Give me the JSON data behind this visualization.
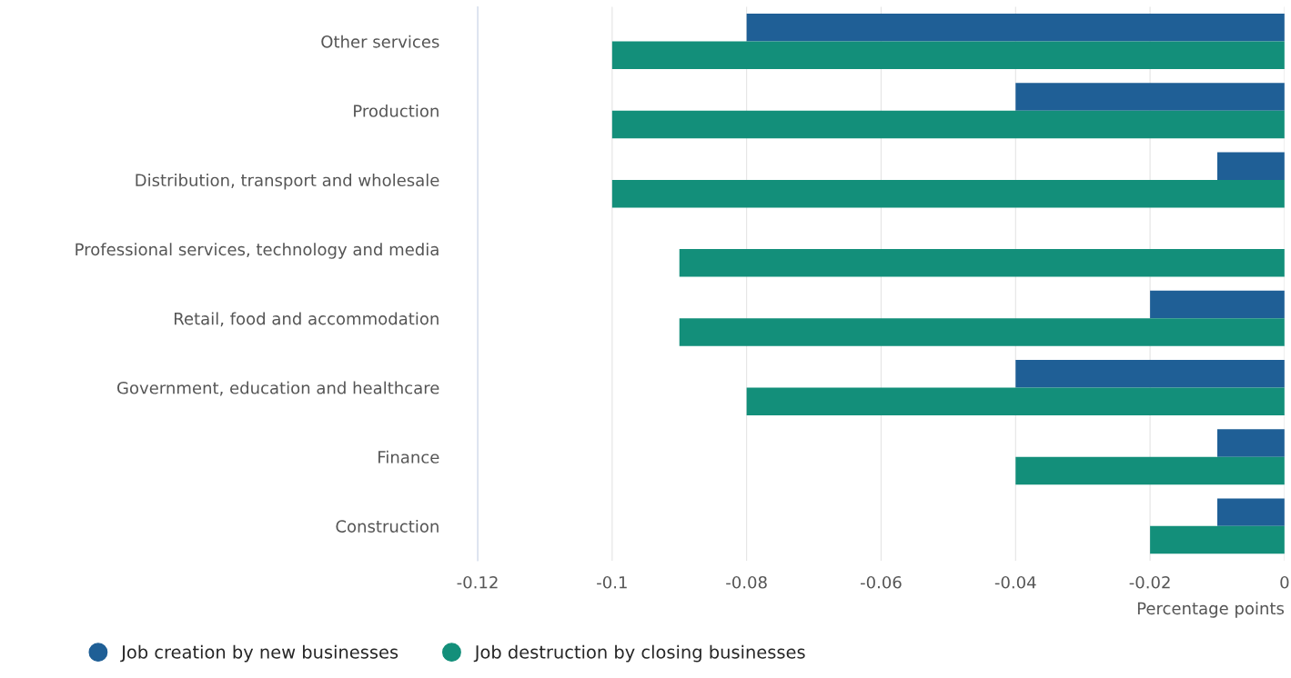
{
  "chart_data": {
    "type": "bar",
    "orientation": "horizontal",
    "categories": [
      "Other services",
      "Production",
      "Distribution, transport and wholesale",
      "Professional services, technology and media",
      "Retail, food and accommodation",
      "Government, education and healthcare",
      "Finance",
      "Construction"
    ],
    "series": [
      {
        "name": "Job creation by new businesses",
        "color": "#1f5f96",
        "values": [
          -0.08,
          -0.04,
          -0.01,
          null,
          -0.02,
          -0.04,
          -0.01,
          -0.01
        ]
      },
      {
        "name": "Job destruction by closing businesses",
        "color": "#138f7a",
        "values": [
          -0.1,
          -0.1,
          -0.1,
          -0.09,
          -0.09,
          -0.08,
          -0.04,
          -0.02
        ]
      }
    ],
    "xlabel": "Percentage points",
    "xlim": [
      -0.12,
      0
    ],
    "xticks": [
      -0.12,
      -0.1,
      -0.08,
      -0.06,
      -0.04,
      -0.02,
      0
    ],
    "grid": "x",
    "legend": "bottom left"
  }
}
